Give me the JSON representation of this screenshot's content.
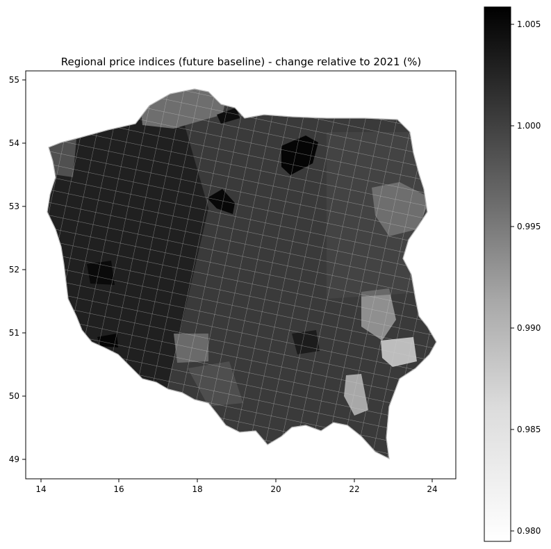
{
  "title": "Regional price indices (future baseline) - change relative to 2021 (%)",
  "map": {
    "x_ticks": [
      "14",
      "16",
      "18",
      "20",
      "22",
      "24"
    ],
    "y_ticks": [
      "49",
      "50",
      "51",
      "52",
      "53",
      "54",
      "55"
    ],
    "x_range": [
      13.6,
      24.7
    ],
    "y_range": [
      48.7,
      55.2
    ],
    "region_edge_color": "#d0d0d0"
  },
  "colorbar": {
    "ticks": [
      "0.980",
      "0.985",
      "0.990",
      "0.995",
      "1.000",
      "1.005"
    ],
    "min": 0.9795,
    "max": 1.0058,
    "colormap": "Greys"
  }
}
